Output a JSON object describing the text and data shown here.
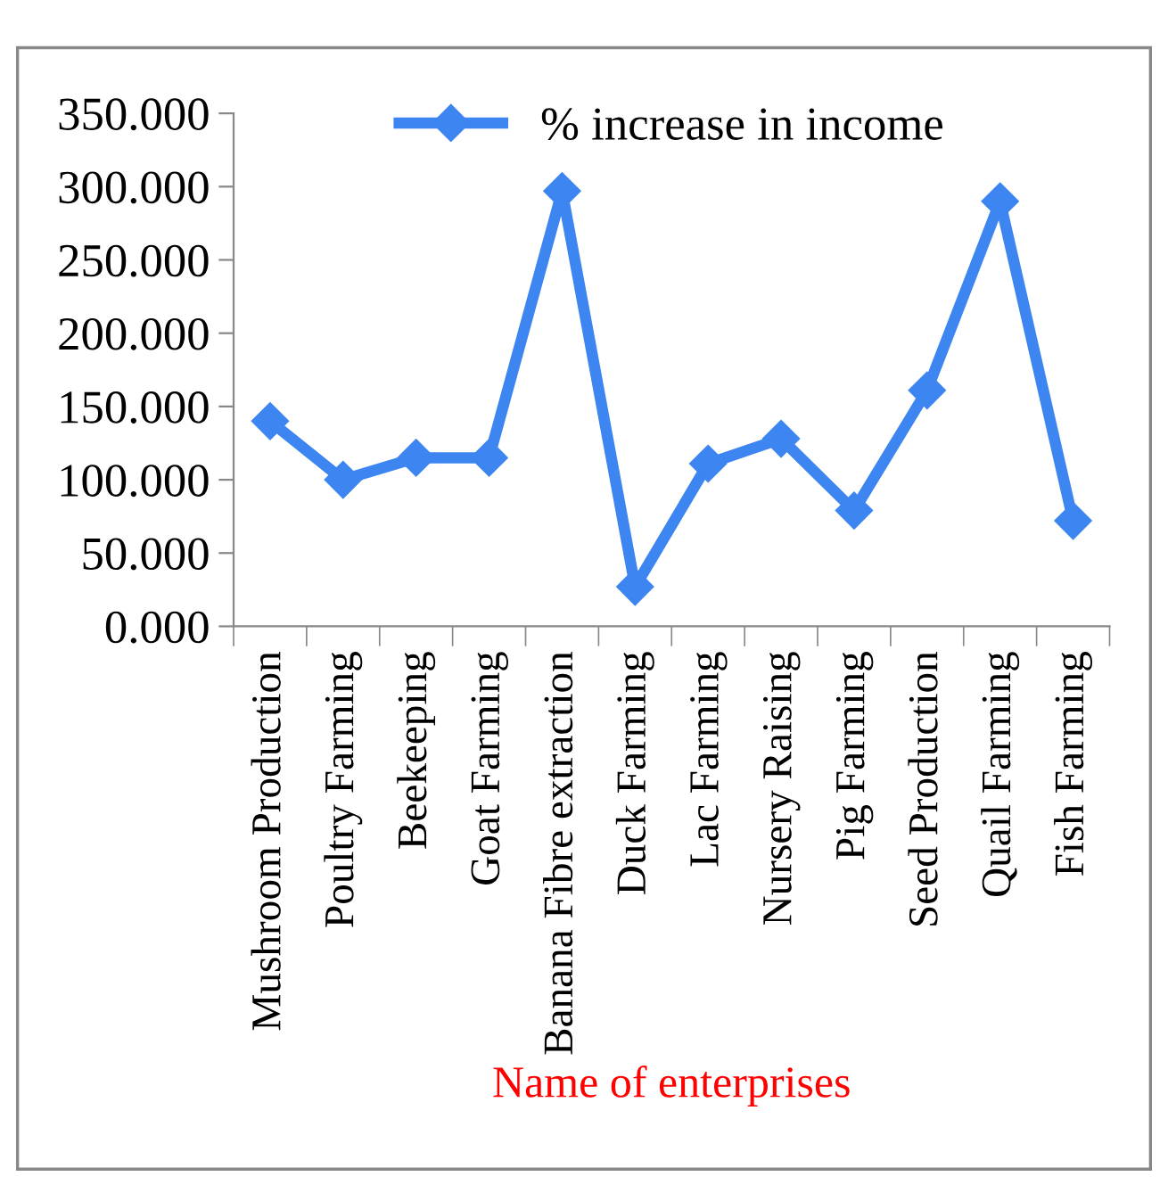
{
  "chart_data": {
    "type": "line",
    "xlabel": "Name of enterprises",
    "categories": [
      "Mushroom Production",
      "Poultry Farming",
      "Beekeeping",
      "Goat Farming",
      "Banana Fibre extraction",
      "Duck Farming",
      "Lac Farming",
      "Nursery Raising",
      "Pig Farming",
      "Seed Production",
      "Quail Farming",
      "Fish Farming"
    ],
    "series": [
      {
        "name": "% increase in income",
        "color": "#3d85f0",
        "values": [
          140,
          100,
          115,
          115,
          297,
          27,
          111,
          128,
          79,
          161,
          290,
          72
        ]
      }
    ],
    "ylim": [
      0,
      350
    ],
    "yticks": [
      {
        "value": 0,
        "label": "0.000"
      },
      {
        "value": 50,
        "label": "50.000"
      },
      {
        "value": 100,
        "label": "100.000"
      },
      {
        "value": 150,
        "label": "150.000"
      },
      {
        "value": 200,
        "label": "200.000"
      },
      {
        "value": 250,
        "label": "250.000"
      },
      {
        "value": 300,
        "label": "300.000"
      },
      {
        "value": 350,
        "label": "350.000"
      }
    ],
    "marker": "diamond",
    "line_style": "solid",
    "legend": "top",
    "grid": false
  }
}
